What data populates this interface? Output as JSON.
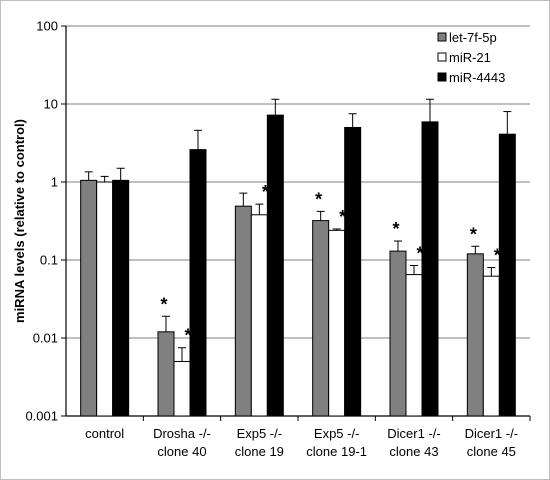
{
  "chart_data": {
    "type": "bar",
    "title": "",
    "xlabel": "",
    "ylabel": "miRNA levels (relative to control)",
    "yscale": "log",
    "ylim": [
      0.001,
      100
    ],
    "yticks": [
      {
        "value": 0.001,
        "label": "0.001"
      },
      {
        "value": 0.01,
        "label": "0.01"
      },
      {
        "value": 0.1,
        "label": "0.1"
      },
      {
        "value": 1,
        "label": "1"
      },
      {
        "value": 10,
        "label": "10"
      },
      {
        "value": 100,
        "label": "100"
      }
    ],
    "grid": true,
    "legend_position": "top-right",
    "categories": [
      [
        "control"
      ],
      [
        "Drosha -/-",
        "clone 40"
      ],
      [
        "Exp5 -/-",
        "clone 19"
      ],
      [
        "Exp5 -/-",
        "clone 19-1"
      ],
      [
        "Dicer1 -/-",
        "clone 43"
      ],
      [
        "Dicer1 -/-",
        "clone 45"
      ]
    ],
    "series": [
      {
        "name": "let-7f-5p",
        "color": "#808080",
        "values": [
          1.05,
          0.012,
          0.49,
          0.32,
          0.13,
          0.12
        ],
        "errors_upper": [
          1.35,
          0.019,
          0.72,
          0.42,
          0.175,
          0.15
        ],
        "significant": [
          false,
          true,
          false,
          true,
          true,
          true
        ]
      },
      {
        "name": "miR-21",
        "color": "#ffffff",
        "values": [
          1.0,
          0.005,
          0.38,
          0.24,
          0.065,
          0.062
        ],
        "errors_upper": [
          1.18,
          0.0075,
          0.52,
          0.25,
          0.085,
          0.08
        ],
        "significant": [
          false,
          true,
          true,
          true,
          true,
          true
        ]
      },
      {
        "name": "miR-4443",
        "color": "#000000",
        "values": [
          1.05,
          2.6,
          7.2,
          5.0,
          5.9,
          4.1
        ],
        "errors_upper": [
          1.5,
          4.6,
          11.5,
          7.5,
          11.5,
          8.0
        ],
        "significant": [
          false,
          false,
          false,
          false,
          false,
          false
        ]
      }
    ],
    "significance_marker": "*"
  }
}
